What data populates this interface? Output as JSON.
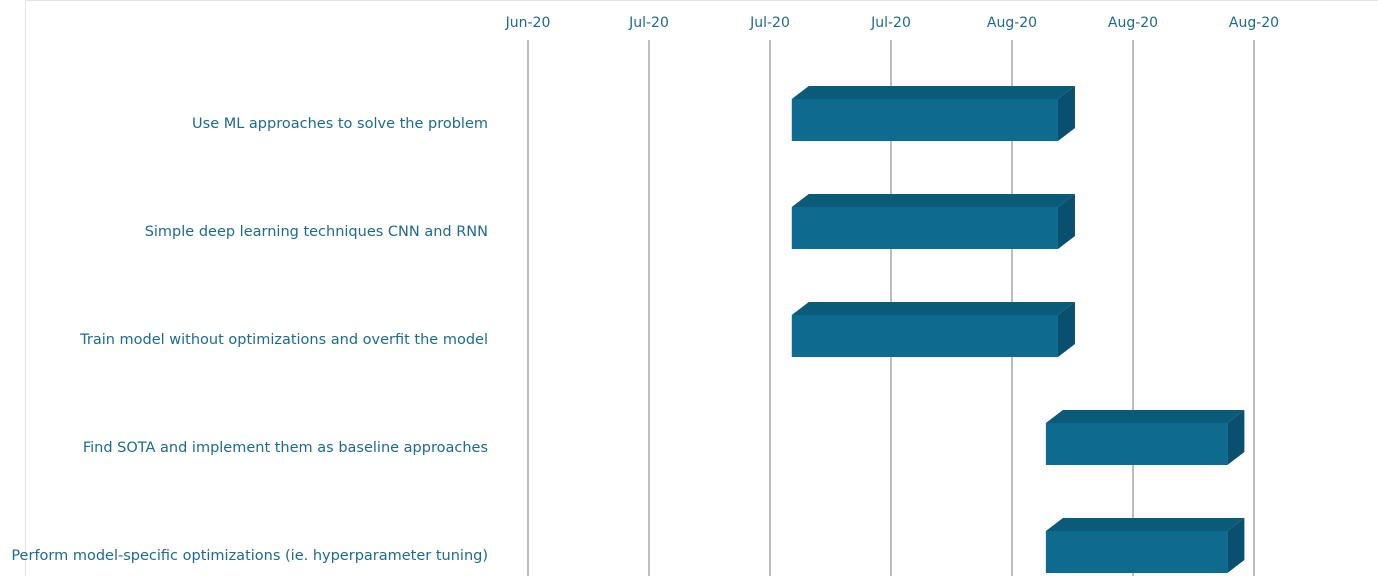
{
  "chart_data": {
    "type": "bar",
    "orientation": "horizontal",
    "style": "gantt-3d",
    "x_ticks": [
      "Jun-20",
      "Jul-20",
      "Jul-20",
      "Jul-20",
      "Aug-20",
      "Aug-20",
      "Aug-20"
    ],
    "tasks": [
      {
        "label": "Use ML approaches to solve the problem",
        "start": 2.18,
        "end": 4.38
      },
      {
        "label": "Simple deep learning techniques CNN and RNN",
        "start": 2.18,
        "end": 4.38
      },
      {
        "label": "Train model without optimizations and overfit the model",
        "start": 2.18,
        "end": 4.38
      },
      {
        "label": "Find SOTA and implement them as baseline approaches",
        "start": 4.28,
        "end": 5.78
      },
      {
        "label": "Perform model-specific optimizations (ie. hyperparameter tuning)",
        "start": 4.28,
        "end": 5.78
      }
    ],
    "xlim": [
      0,
      6
    ],
    "grid": true,
    "colors": {
      "bar_front": "#0e6b8f",
      "bar_top": "#0a5a79",
      "bar_side": "#08506d",
      "text": "#1c6b8c",
      "grid": "#bdbdbd",
      "frame": "#e3e3e3"
    }
  }
}
